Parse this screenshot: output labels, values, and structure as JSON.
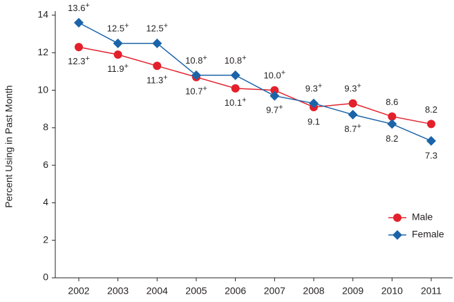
{
  "chart_data": {
    "type": "line",
    "y_label": "Percent Using in Past Month",
    "categories": [
      "2002",
      "2003",
      "2004",
      "2005",
      "2006",
      "2007",
      "2008",
      "2009",
      "2010",
      "2011"
    ],
    "series": [
      {
        "name": "Male",
        "color": "#e3202b",
        "marker": "circle",
        "values": [
          12.3,
          11.9,
          11.3,
          10.7,
          10.1,
          10.0,
          9.1,
          9.3,
          8.6,
          8.2
        ],
        "value_labels": [
          "12.3+",
          "11.9+",
          "11.3+",
          "10.7+",
          "10.1+",
          "10.0+",
          "9.1",
          "9.3+",
          "8.6",
          "8.2"
        ]
      },
      {
        "name": "Female",
        "color": "#1b64a9",
        "marker": "diamond",
        "values": [
          13.6,
          12.5,
          12.5,
          10.8,
          10.8,
          9.7,
          9.3,
          8.7,
          8.2,
          7.3
        ],
        "value_labels": [
          "13.6+",
          "12.5+",
          "12.5+",
          "10.8+",
          "10.8+",
          "9.7+",
          "9.3+",
          "8.7+",
          "8.2",
          "7.3"
        ]
      }
    ],
    "ylim": [
      0,
      14
    ],
    "yticks": [
      0,
      2,
      4,
      6,
      8,
      10,
      12,
      14
    ],
    "legend": "lower right"
  }
}
